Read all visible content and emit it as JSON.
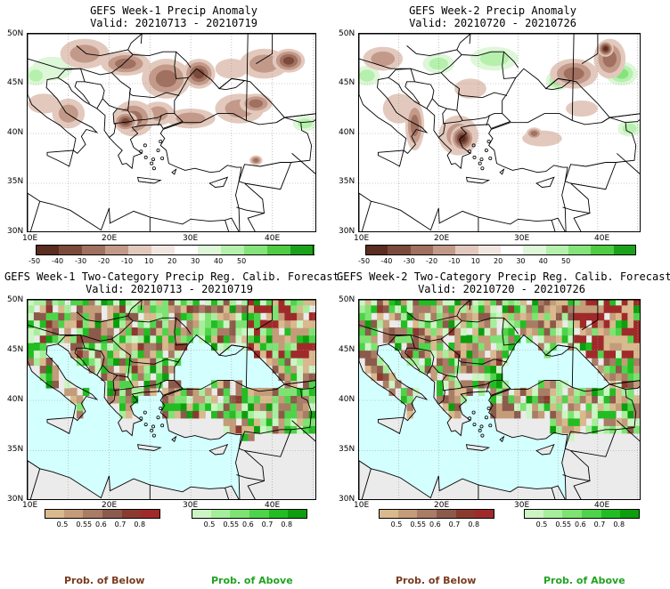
{
  "panels": [
    {
      "title": "GEFS Week-1 Precip Anomaly",
      "valid": "Valid: 20210713 - 20210719",
      "type": "anomaly"
    },
    {
      "title": "GEFS Week-2 Precip Anomaly",
      "valid": "Valid: 20210720 - 20210726",
      "type": "anomaly"
    },
    {
      "title": "GEFS Week-1 Two-Category Precip Reg. Calib. Forecast",
      "valid": "Valid: 20210713 - 20210719",
      "type": "prob"
    },
    {
      "title": "GEFS Week-2 Two-Category Precip Reg. Calib. Forecast",
      "valid": "Valid: 20210720 - 20210726",
      "type": "prob"
    }
  ],
  "axes": {
    "lat_labels": [
      "50N",
      "45N",
      "40N",
      "35N",
      "30N"
    ],
    "lon_labels": [
      "10E",
      "20E",
      "30E",
      "40E"
    ]
  },
  "anomaly_colorbar": {
    "ticks": [
      "-50",
      "-40",
      "-30",
      "-20",
      "-10",
      "10",
      "20",
      "30",
      "40",
      "50"
    ],
    "colors": [
      "#5b2c20",
      "#7c4a3b",
      "#a07060",
      "#c39a89",
      "#e3c9bd",
      "#f2e6e0",
      "#ffffff",
      "#ddf7d8",
      "#b5f0ad",
      "#84e47a",
      "#4ecc44",
      "#1aa31a"
    ]
  },
  "prob_colorbar_below": {
    "ticks": [
      "0.5",
      "0.55",
      "0.6",
      "0.7",
      "0.8"
    ],
    "colors": [
      "#d9b98e",
      "#c49c7a",
      "#a97c66",
      "#8c5a4a",
      "#8b3a2f",
      "#a02a2a"
    ]
  },
  "prob_colorbar_above": {
    "ticks": [
      "0.5",
      "0.55",
      "0.6",
      "0.7",
      "0.8"
    ],
    "colors": [
      "#ccf5c4",
      "#a7ee9c",
      "#7ee373",
      "#4fd34a",
      "#22bd22",
      "#0d9e0d"
    ]
  },
  "footer": {
    "below_label": "Prob. of Below",
    "above_label": "Prob. of Above",
    "below_color": "#7a3b1f",
    "above_color": "#22a322"
  },
  "colors": {
    "sea": "#d4ffff",
    "land_nodata": "#ebebeb"
  }
}
